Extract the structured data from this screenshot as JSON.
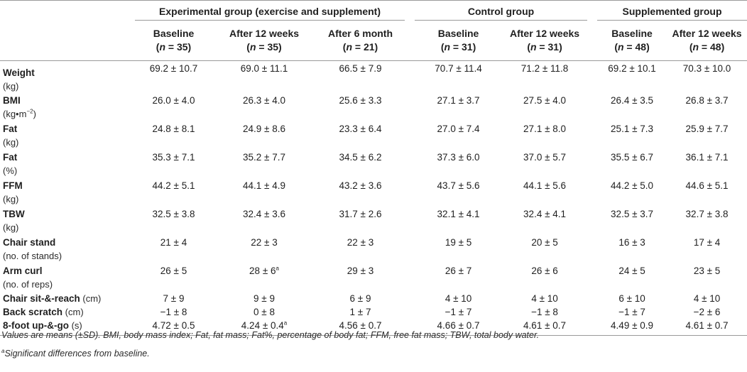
{
  "groups": {
    "experimental": "Experimental group (exercise and supplement)",
    "control": "Control group",
    "supplemented": "Supplemented group"
  },
  "columns": [
    {
      "label": "Baseline",
      "n_prefix": "(",
      "n_var": "n",
      "n_value": " = 35)"
    },
    {
      "label": "After 12 weeks",
      "n_prefix": "(",
      "n_var": "n",
      "n_value": " = 35)"
    },
    {
      "label": "After 6 month",
      "n_prefix": "(",
      "n_var": "n",
      "n_value": " = 21)"
    },
    {
      "label": "Baseline",
      "n_prefix": "(",
      "n_var": "n",
      "n_value": " = 31)"
    },
    {
      "label": "After 12 weeks",
      "n_prefix": "(",
      "n_var": "n",
      "n_value": " = 31)"
    },
    {
      "label": "Baseline",
      "n_prefix": "(",
      "n_var": "n",
      "n_value": " = 48)"
    },
    {
      "label": "After 12 weeks",
      "n_prefix": "(",
      "n_var": "n",
      "n_value": " = 48)"
    }
  ],
  "rows": [
    {
      "name": "Weight",
      "unit": "(kg)",
      "values": [
        "69.2 ± 10.7",
        "69.0 ± 11.1",
        "66.5 ± 7.9",
        "70.7 ± 11.4",
        "71.2 ± 11.8",
        "69.2 ± 10.1",
        "70.3 ± 10.0"
      ]
    },
    {
      "name": "BMI",
      "unit": "(kg•m",
      "unit_sup": "−2",
      "unit_end": ")",
      "values": [
        "26.0 ± 4.0",
        "26.3 ± 4.0",
        "25.6 ± 3.3",
        "27.1 ± 3.7",
        "27.5 ± 4.0",
        "26.4 ± 3.5",
        "26.8 ± 3.7"
      ]
    },
    {
      "name": "Fat",
      "unit": "(kg)",
      "values": [
        "24.8 ± 8.1",
        "24.9 ± 8.6",
        "23.3 ± 6.4",
        "27.0 ± 7.4",
        "27.1 ± 8.0",
        "25.1 ± 7.3",
        "25.9 ± 7.7"
      ]
    },
    {
      "name": "Fat",
      "unit": "(%)",
      "values": [
        "35.3 ± 7.1",
        "35.2 ± 7.7",
        "34.5 ± 6.2",
        "37.3 ± 6.0",
        "37.0 ± 5.7",
        "35.5 ± 6.7",
        "36.1 ± 7.1"
      ]
    },
    {
      "name": "FFM",
      "unit": "(kg)",
      "values": [
        "44.2 ± 5.1",
        "44.1 ± 4.9",
        "43.2 ± 3.6",
        "43.7 ± 5.6",
        "44.1 ± 5.6",
        "44.2 ± 5.0",
        "44.6 ± 5.1"
      ]
    },
    {
      "name": "TBW",
      "unit": "(kg)",
      "values": [
        "32.5 ± 3.8",
        "32.4 ± 3.6",
        "31.7 ± 2.6",
        "32.1 ± 4.1",
        "32.4 ± 4.1",
        "32.5 ± 3.7",
        "32.7 ± 3.8"
      ]
    },
    {
      "name": "Chair stand",
      "unit": "(no. of stands)",
      "values": [
        "21 ± 4",
        "22 ± 3",
        "22 ± 3",
        "19 ± 5",
        "20 ± 5",
        "16 ± 3",
        "17 ± 4"
      ]
    },
    {
      "name": "Arm curl",
      "unit": "(no. of reps)",
      "values": [
        "26 ± 5",
        "28 ± 6",
        "29 ± 3",
        "26 ± 7",
        "26 ± 6",
        "24 ± 5",
        "23 ± 5"
      ],
      "sups": [
        "",
        "a",
        "",
        "",
        "",
        "",
        ""
      ]
    },
    {
      "name": "Chair sit-&-reach",
      "inline_unit": " (cm)",
      "values": [
        "7 ± 9",
        "9 ± 9",
        "6 ± 9",
        "4 ± 10",
        "4 ± 10",
        "6 ± 10",
        "4 ± 10"
      ]
    },
    {
      "name": "Back scratch",
      "inline_unit": " (cm)",
      "values": [
        "−1 ± 8",
        "0 ± 8",
        "1 ± 7",
        "−1 ± 7",
        "−1 ± 8",
        "−1 ± 7",
        "−2 ± 6"
      ]
    },
    {
      "name": "8-foot up-&-go",
      "inline_unit": " (s)",
      "values": [
        "4.72 ± 0.5",
        "4.24 ± 0.4",
        "4.56 ± 0.7",
        "4.66 ± 0.7",
        "4.61 ± 0.7",
        "4.49 ± 0.9",
        "4.61 ± 0.7"
      ],
      "sups": [
        "",
        "a",
        "",
        "",
        "",
        "",
        ""
      ]
    }
  ],
  "footnotes": {
    "definitions": "Values are means (±SD). BMI, body mass index; Fat, fat mass; Fat%, percentage of body fat; FFM, free fat mass; TBW, total body water.",
    "sig_marker": "a",
    "significance": "Significant differences from baseline."
  }
}
